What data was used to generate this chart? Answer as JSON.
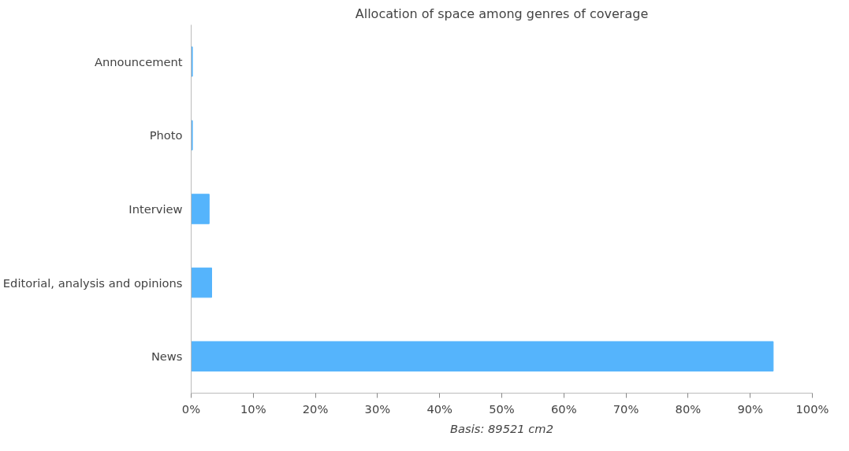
{
  "chart_data": {
    "type": "bar",
    "orientation": "horizontal",
    "title": "Allocation of space among genres of coverage",
    "xlabel": "Basis: 89521 cm2",
    "categories": [
      "Announcement",
      "Photo",
      "Interview",
      "Editorial, analysis and opinions",
      "News"
    ],
    "values": [
      0.2,
      0.2,
      2.9,
      3.3,
      93.7
    ],
    "color": "#55b4fc",
    "xlim": [
      0,
      100
    ],
    "xticks": [
      {
        "value": 0,
        "label": "0%"
      },
      {
        "value": 10,
        "label": "10%"
      },
      {
        "value": 20,
        "label": "20%"
      },
      {
        "value": 30,
        "label": "30%"
      },
      {
        "value": 40,
        "label": "40%"
      },
      {
        "value": 50,
        "label": "50%"
      },
      {
        "value": 60,
        "label": "60%"
      },
      {
        "value": 70,
        "label": "70%"
      },
      {
        "value": 80,
        "label": "80%"
      },
      {
        "value": 90,
        "label": "90%"
      },
      {
        "value": 100,
        "label": "100%"
      }
    ],
    "grid": false
  }
}
